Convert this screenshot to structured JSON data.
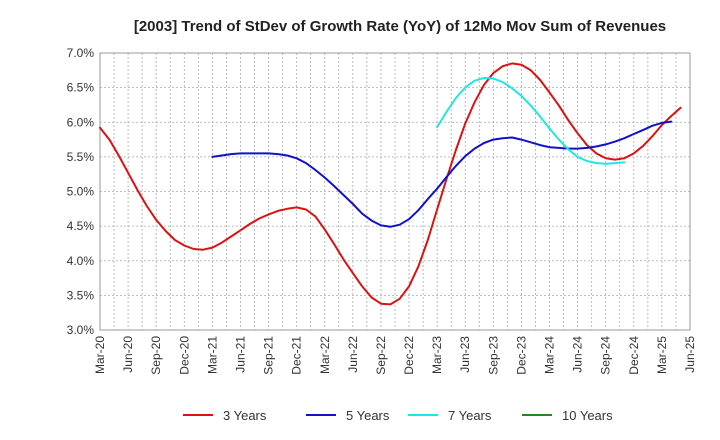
{
  "chart_data": {
    "type": "line",
    "title": "[2003]  Trend of StDev of Growth Rate (YoY) of 12Mo Mov Sum of Revenues",
    "xlabel": "",
    "ylabel": "",
    "ylim": [
      3.0,
      7.0
    ],
    "yticks": [
      3.0,
      3.5,
      4.0,
      4.5,
      5.0,
      5.5,
      6.0,
      6.5,
      7.0
    ],
    "ytick_labels": [
      "3.0%",
      "3.5%",
      "4.0%",
      "4.5%",
      "5.0%",
      "5.5%",
      "6.0%",
      "6.5%",
      "7.0%"
    ],
    "xtick_labels": [
      "Mar-20",
      "Jun-20",
      "Sep-20",
      "Dec-20",
      "Mar-21",
      "Jun-21",
      "Sep-21",
      "Dec-21",
      "Mar-22",
      "Jun-22",
      "Sep-22",
      "Dec-22",
      "Mar-23",
      "Jun-23",
      "Sep-23",
      "Dec-23",
      "Mar-24",
      "Jun-24",
      "Sep-24",
      "Dec-24",
      "Mar-25",
      "Jun-25"
    ],
    "grid": true,
    "legend_position": "bottom",
    "series": [
      {
        "name": "3 Years",
        "color": "#dd1111",
        "start_index": 0,
        "values": [
          5.92,
          5.75,
          5.52,
          5.27,
          5.02,
          4.79,
          4.59,
          4.43,
          4.3,
          4.22,
          4.17,
          4.16,
          4.19,
          4.26,
          4.35,
          4.44,
          4.53,
          4.61,
          4.67,
          4.72,
          4.75,
          4.77,
          4.74,
          4.64,
          4.45,
          4.24,
          4.02,
          3.82,
          3.63,
          3.47,
          3.38,
          3.37,
          3.45,
          3.63,
          3.92,
          4.3,
          4.74,
          5.18,
          5.6,
          5.98,
          6.29,
          6.54,
          6.71,
          6.81,
          6.85,
          6.83,
          6.75,
          6.61,
          6.43,
          6.24,
          6.03,
          5.84,
          5.67,
          5.55,
          5.48,
          5.46,
          5.48,
          5.55,
          5.66,
          5.8,
          5.96,
          6.09,
          6.21
        ]
      },
      {
        "name": "5 Years",
        "color": "#1111cc",
        "start_index": 12,
        "values": [
          5.5,
          5.52,
          5.54,
          5.55,
          5.55,
          5.55,
          5.55,
          5.54,
          5.52,
          5.48,
          5.41,
          5.31,
          5.2,
          5.08,
          4.95,
          4.82,
          4.68,
          4.58,
          4.51,
          4.49,
          4.52,
          4.6,
          4.73,
          4.89,
          5.04,
          5.21,
          5.37,
          5.51,
          5.62,
          5.7,
          5.75,
          5.77,
          5.78,
          5.75,
          5.71,
          5.67,
          5.64,
          5.63,
          5.62,
          5.62,
          5.63,
          5.65,
          5.68,
          5.72,
          5.77,
          5.83,
          5.89,
          5.95,
          5.99,
          6.01
        ]
      },
      {
        "name": "7 Years",
        "color": "#22e5e5",
        "start_index": 36,
        "values": [
          5.93,
          6.15,
          6.35,
          6.5,
          6.6,
          6.64,
          6.63,
          6.58,
          6.49,
          6.38,
          6.24,
          6.08,
          5.91,
          5.75,
          5.61,
          5.5,
          5.44,
          5.41,
          5.4,
          5.41,
          5.42
        ]
      },
      {
        "name": "10 Years",
        "color": "#228822",
        "start_index": 0,
        "values": []
      }
    ]
  }
}
